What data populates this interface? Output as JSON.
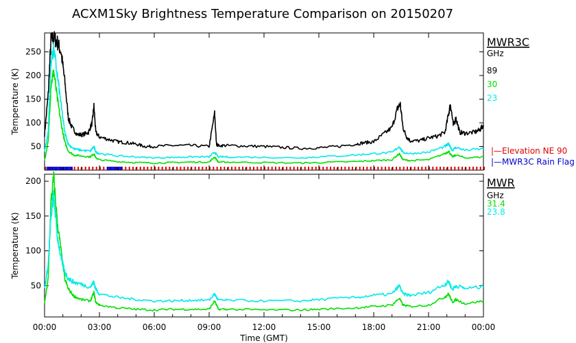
{
  "title": "ACXM1Sky Brightness Temperature Comparison on 20150207",
  "colors": {
    "black": "#000000",
    "green": "#00e000",
    "cyan": "#00eaea",
    "red": "#dd0000",
    "blue": "#0000cc"
  },
  "chart_data": [
    {
      "type": "line",
      "panel": "top",
      "ylabel": "Temperature (K)",
      "ylim": [
        0,
        290
      ],
      "yticks": [
        50,
        100,
        150,
        200,
        250
      ],
      "xlim_hours": [
        0,
        24
      ],
      "legend": {
        "title": "MWR3C",
        "unit": "GHz",
        "entries": [
          "89",
          "30",
          "23"
        ],
        "placement": "right"
      },
      "series": [
        {
          "name": "89",
          "color": "#000000",
          "x_hours": [
            0,
            0.2,
            0.35,
            0.5,
            0.7,
            0.9,
            1.1,
            1.3,
            1.5,
            1.8,
            2.1,
            2.4,
            2.6,
            2.7,
            2.8,
            3.0,
            3.5,
            4.0,
            4.5,
            5.0,
            5.5,
            6.0,
            7.0,
            8.0,
            9.0,
            9.3,
            9.4,
            9.5,
            10.0,
            11.0,
            12.0,
            13.0,
            14.0,
            15.0,
            16.0,
            17.0,
            17.5,
            18.0,
            18.5,
            19.0,
            19.3,
            19.45,
            19.6,
            19.8,
            20.0,
            20.5,
            21.0,
            21.5,
            21.9,
            22.1,
            22.2,
            22.35,
            22.5,
            22.7,
            23.0,
            23.5,
            23.8,
            24.0
          ],
          "values": [
            75,
            160,
            275,
            280,
            270,
            250,
            190,
            110,
            90,
            75,
            75,
            80,
            100,
            135,
            80,
            70,
            65,
            60,
            58,
            55,
            50,
            50,
            52,
            52,
            50,
            120,
            55,
            52,
            52,
            51,
            50,
            48,
            46,
            47,
            50,
            55,
            58,
            60,
            75,
            90,
            130,
            140,
            90,
            70,
            62,
            62,
            68,
            72,
            80,
            120,
            140,
            95,
            110,
            80,
            78,
            80,
            85,
            95
          ]
        },
        {
          "name": "30",
          "color": "#00e000",
          "x_hours": [
            0,
            0.2,
            0.35,
            0.5,
            0.7,
            0.9,
            1.1,
            1.3,
            1.6,
            2.0,
            2.5,
            2.7,
            2.8,
            3.0,
            4.0,
            5.0,
            6.0,
            7.0,
            8.0,
            9.0,
            9.3,
            9.5,
            10.0,
            12.0,
            14.0,
            15.0,
            17.0,
            18.0,
            19.0,
            19.4,
            19.6,
            20.0,
            21.0,
            21.9,
            22.1,
            22.3,
            22.5,
            23.0,
            24.0
          ],
          "values": [
            20,
            60,
            180,
            210,
            150,
            100,
            60,
            40,
            32,
            30,
            28,
            35,
            26,
            22,
            18,
            16,
            15,
            16,
            17,
            17,
            28,
            17,
            17,
            16,
            15,
            16,
            18,
            20,
            22,
            35,
            22,
            20,
            22,
            35,
            40,
            28,
            32,
            26,
            28
          ]
        },
        {
          "name": "23",
          "color": "#00eaea",
          "x_hours": [
            0,
            0.2,
            0.35,
            0.5,
            0.7,
            0.9,
            1.1,
            1.3,
            1.6,
            2.0,
            2.5,
            2.7,
            2.8,
            3.0,
            4.0,
            5.0,
            6.0,
            7.0,
            8.0,
            9.0,
            9.3,
            9.5,
            10.0,
            12.0,
            14.0,
            15.0,
            17.0,
            18.0,
            19.0,
            19.4,
            19.6,
            20.0,
            21.0,
            21.9,
            22.1,
            22.3,
            22.5,
            23.0,
            24.0
          ],
          "values": [
            40,
            80,
            230,
            255,
            200,
            140,
            80,
            55,
            45,
            42,
            40,
            50,
            38,
            35,
            30,
            28,
            26,
            27,
            28,
            28,
            38,
            28,
            28,
            27,
            26,
            28,
            32,
            35,
            37,
            50,
            37,
            35,
            38,
            50,
            55,
            42,
            48,
            42,
            45
          ]
        }
      ],
      "flag_bars": [
        {
          "name": "Elevation NE 90",
          "color": "#dd0000"
        },
        {
          "name": "MWR3C Rain Flag",
          "color": "#0000cc",
          "intervals_hours": [
            [
              0.1,
              1.5
            ],
            [
              3.4,
              4.2
            ]
          ]
        }
      ]
    },
    {
      "type": "line",
      "panel": "bottom",
      "ylabel": "Temperature (K)",
      "xlabel": "Time (GMT)",
      "ylim": [
        5,
        210
      ],
      "yticks": [
        50,
        100,
        150,
        200
      ],
      "xlim_hours": [
        0,
        24
      ],
      "xtick_labels": [
        "00:00",
        "03:00",
        "06:00",
        "09:00",
        "12:00",
        "15:00",
        "18:00",
        "21:00",
        "00:00"
      ],
      "legend": {
        "title": "MWR",
        "unit": "GHz",
        "entries": [
          "31.4",
          "23.8"
        ],
        "placement": "right"
      },
      "series": [
        {
          "name": "31.4",
          "color": "#00e000",
          "x_hours": [
            0,
            0.2,
            0.35,
            0.5,
            0.7,
            0.9,
            1.1,
            1.3,
            1.6,
            2.0,
            2.5,
            2.7,
            2.8,
            3.0,
            4.0,
            5.0,
            6.0,
            7.0,
            8.0,
            9.0,
            9.3,
            9.5,
            10.0,
            12.0,
            14.0,
            15.0,
            17.0,
            18.0,
            19.0,
            19.4,
            19.6,
            20.0,
            21.0,
            21.9,
            22.1,
            22.3,
            22.5,
            23.0,
            24.0
          ],
          "values": [
            25,
            60,
            170,
            205,
            140,
            100,
            60,
            45,
            35,
            30,
            28,
            40,
            26,
            22,
            18,
            16,
            15,
            16,
            16,
            16,
            28,
            16,
            16,
            15,
            15,
            16,
            18,
            20,
            22,
            32,
            22,
            20,
            22,
            34,
            38,
            26,
            30,
            24,
            28
          ]
        },
        {
          "name": "23.8",
          "color": "#00eaea",
          "x_hours": [
            0,
            0.2,
            0.35,
            0.5,
            0.7,
            0.9,
            1.1,
            1.3,
            1.6,
            2.0,
            2.5,
            2.7,
            2.8,
            3.0,
            4.0,
            5.0,
            6.0,
            7.0,
            8.0,
            9.0,
            9.3,
            9.5,
            10.0,
            12.0,
            14.0,
            15.0,
            17.0,
            18.0,
            19.0,
            19.4,
            19.6,
            20.0,
            21.0,
            21.9,
            22.1,
            22.3,
            22.5,
            23.0,
            24.0
          ],
          "values": [
            45,
            80,
            150,
            180,
            120,
            90,
            70,
            60,
            55,
            52,
            48,
            55,
            45,
            38,
            33,
            30,
            28,
            28,
            29,
            29,
            38,
            29,
            29,
            28,
            28,
            30,
            33,
            36,
            38,
            50,
            38,
            36,
            40,
            52,
            56,
            44,
            50,
            46,
            48
          ]
        }
      ]
    }
  ],
  "side_legend": {
    "elevation": "|—Elevation NE 90",
    "rain": "|—MWR3C Rain Flag"
  }
}
